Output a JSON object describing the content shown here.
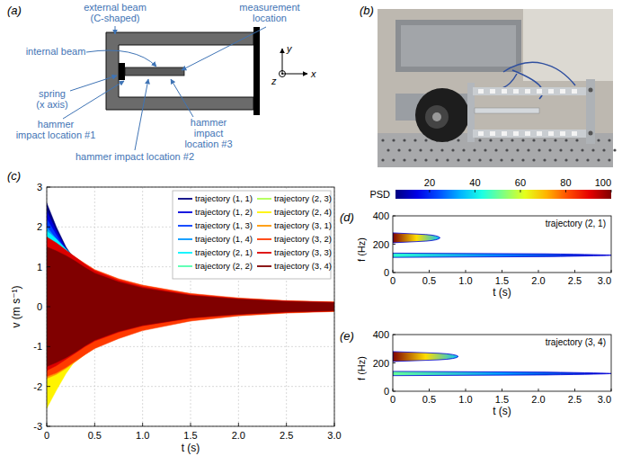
{
  "diagram": {
    "label": "(a)",
    "labels": [
      {
        "lines": [
          "external beam",
          "(C-shaped)"
        ]
      },
      {
        "lines": [
          "internal beam"
        ]
      },
      {
        "lines": [
          "measurement",
          "location"
        ]
      },
      {
        "lines": [
          "spring",
          "(x axis)"
        ]
      },
      {
        "lines": [
          "hammer",
          "impact location #1"
        ]
      },
      {
        "lines": [
          "hammer impact location #2"
        ]
      },
      {
        "lines": [
          "hammer",
          "impact",
          "location #3"
        ]
      }
    ],
    "axes": [
      "x",
      "y",
      "z"
    ]
  },
  "photo": {
    "label": "(b)"
  },
  "chart_data": [
    {
      "type": "band",
      "label": "(c)",
      "xlabel": "t (s)",
      "ylabel": "v (m s⁻¹)",
      "x": [
        0,
        0.1,
        0.2,
        0.3,
        0.4,
        0.5,
        0.75,
        1.0,
        1.5,
        2.0,
        2.5,
        3.0
      ],
      "xlim": [
        0,
        3
      ],
      "xticks": [
        0,
        0.5,
        {
          "value": 1,
          "label": "1.0"
        },
        1.5,
        {
          "value": 2,
          "label": "2.0"
        },
        2.5,
        {
          "value": 3,
          "label": "3.0"
        }
      ],
      "ylim": [
        -3,
        3
      ],
      "yticks": [
        -3,
        -2,
        -1,
        0,
        1,
        2,
        3
      ],
      "grid": true,
      "legend": "upper right",
      "series": [
        {
          "name": "trajectory (1, 1)",
          "color": "#000080",
          "values": [
            2.6,
            2.0,
            1.5,
            1.15,
            0.9,
            0.72,
            0.48,
            0.35,
            0.22,
            0.15,
            0.11,
            0.09
          ],
          "lower": [
            -2.0,
            -1.6,
            -1.25,
            -1.0,
            -0.8,
            -0.65,
            -0.45,
            -0.33,
            -0.21,
            -0.15,
            -0.11,
            -0.09
          ]
        },
        {
          "name": "trajectory (1, 2)",
          "color": "#0000dc",
          "values": [
            2.4,
            1.9,
            1.45,
            1.12,
            0.88,
            0.7,
            0.47,
            0.34,
            0.22,
            0.15,
            0.11,
            0.09
          ],
          "lower": [
            -1.9,
            -1.5,
            -1.2,
            -0.95,
            -0.78,
            -0.63,
            -0.44,
            -0.32,
            -0.21,
            -0.15,
            -0.11,
            -0.09
          ]
        },
        {
          "name": "trajectory (1, 3)",
          "color": "#003aff",
          "values": [
            2.2,
            1.8,
            1.4,
            1.1,
            0.87,
            0.7,
            0.47,
            0.35,
            0.22,
            0.15,
            0.11,
            0.09
          ],
          "lower": [
            -1.8,
            -1.45,
            -1.15,
            -0.93,
            -0.76,
            -0.62,
            -0.44,
            -0.32,
            -0.21,
            -0.15,
            -0.11,
            -0.09
          ]
        },
        {
          "name": "trajectory (1, 4)",
          "color": "#0097ff",
          "values": [
            2.0,
            1.7,
            1.35,
            1.08,
            0.86,
            0.7,
            0.48,
            0.36,
            0.23,
            0.16,
            0.12,
            0.1
          ],
          "lower": [
            -1.75,
            -1.45,
            -1.15,
            -0.93,
            -0.76,
            -0.63,
            -0.45,
            -0.33,
            -0.22,
            -0.16,
            -0.12,
            -0.1
          ]
        },
        {
          "name": "trajectory (2, 1)",
          "color": "#00f4ff",
          "values": [
            1.9,
            1.7,
            1.45,
            1.2,
            0.98,
            0.8,
            0.55,
            0.4,
            0.25,
            0.17,
            0.12,
            0.1
          ],
          "lower": [
            -2.2,
            -1.85,
            -1.5,
            -1.2,
            -0.98,
            -0.8,
            -0.55,
            -0.4,
            -0.25,
            -0.17,
            -0.12,
            -0.1
          ]
        },
        {
          "name": "trajectory (2, 2)",
          "color": "#51ffae",
          "values": [
            1.6,
            1.45,
            1.28,
            1.12,
            0.97,
            0.85,
            0.65,
            0.5,
            0.3,
            0.2,
            0.14,
            0.11
          ],
          "lower": [
            -2.3,
            -1.95,
            -1.6,
            -1.3,
            -1.08,
            -0.9,
            -0.68,
            -0.52,
            -0.31,
            -0.2,
            -0.14,
            -0.11
          ]
        },
        {
          "name": "trajectory (2, 3)",
          "color": "#aeff51",
          "values": [
            1.5,
            1.38,
            1.22,
            1.07,
            0.92,
            0.8,
            0.6,
            0.46,
            0.28,
            0.19,
            0.13,
            0.1
          ],
          "lower": [
            -2.4,
            -2.0,
            -1.62,
            -1.3,
            -1.06,
            -0.88,
            -0.64,
            -0.48,
            -0.29,
            -0.19,
            -0.13,
            -0.1
          ]
        },
        {
          "name": "trajectory (2, 4)",
          "color": "#fff400",
          "values": [
            1.5,
            1.36,
            1.2,
            1.04,
            0.9,
            0.78,
            0.58,
            0.44,
            0.27,
            0.18,
            0.13,
            0.1
          ],
          "lower": [
            -2.55,
            -2.1,
            -1.68,
            -1.34,
            -1.08,
            -0.88,
            -0.62,
            -0.46,
            -0.28,
            -0.18,
            -0.13,
            -0.1
          ]
        },
        {
          "name": "trajectory (3, 1)",
          "color": "#ff9700",
          "values": [
            1.5,
            1.42,
            1.3,
            1.15,
            1.0,
            0.87,
            0.65,
            0.5,
            0.3,
            0.2,
            0.14,
            0.11
          ],
          "lower": [
            -1.8,
            -1.7,
            -1.55,
            -1.38,
            -1.2,
            -1.04,
            -0.76,
            -0.56,
            -0.33,
            -0.21,
            -0.15,
            -0.11
          ]
        },
        {
          "name": "trajectory (3, 2)",
          "color": "#ff3a00",
          "values": [
            1.6,
            1.52,
            1.4,
            1.24,
            1.08,
            0.93,
            0.7,
            0.54,
            0.33,
            0.22,
            0.15,
            0.12
          ],
          "lower": [
            -1.75,
            -1.66,
            -1.52,
            -1.36,
            -1.2,
            -1.05,
            -0.8,
            -0.6,
            -0.36,
            -0.23,
            -0.16,
            -0.12
          ]
        },
        {
          "name": "trajectory (3, 3)",
          "color": "#dc0000",
          "values": [
            1.75,
            1.6,
            1.42,
            1.24,
            1.06,
            0.9,
            0.66,
            0.5,
            0.3,
            0.2,
            0.14,
            0.11
          ],
          "lower": [
            -1.6,
            -1.48,
            -1.32,
            -1.16,
            -1.0,
            -0.86,
            -0.64,
            -0.48,
            -0.29,
            -0.19,
            -0.14,
            -0.11
          ]
        },
        {
          "name": "trajectory (3, 4)",
          "color": "#800000",
          "values": [
            1.5,
            1.4,
            1.28,
            1.14,
            0.98,
            0.84,
            0.62,
            0.47,
            0.28,
            0.19,
            0.13,
            0.1
          ],
          "lower": [
            -1.5,
            -1.4,
            -1.28,
            -1.14,
            -0.98,
            -0.84,
            -0.62,
            -0.47,
            -0.28,
            -0.19,
            -0.13,
            -0.1
          ]
        }
      ]
    },
    {
      "type": "spectrogram",
      "label": "(d)",
      "annotation": "trajectory (2, 1)",
      "xlabel": "t (s)",
      "ylabel": "f (Hz)",
      "xlim": [
        0,
        3
      ],
      "xticks": [
        0,
        0.5,
        {
          "value": 1,
          "label": "1.0"
        },
        1.5,
        {
          "value": 2,
          "label": "2.0"
        },
        2.5,
        {
          "value": 3,
          "label": "3.0"
        }
      ],
      "ylim": [
        0,
        400
      ],
      "yticks": [
        0,
        200,
        400
      ],
      "colorbar": {
        "title": "PSD",
        "lim": [
          5,
          100
        ],
        "ticks": [
          20,
          40,
          60,
          80,
          100
        ]
      },
      "ridges": [
        {
          "f": 245,
          "width": 70,
          "t_start": 0,
          "t_end": 0.65,
          "psd_start": 100,
          "psd_end": 35
        },
        {
          "f": 122,
          "width": 30,
          "t_start": 0,
          "t_end": 3.0,
          "psd_start": 45,
          "psd_end": 12
        }
      ]
    },
    {
      "type": "spectrogram",
      "label": "(e)",
      "annotation": "trajectory (3, 4)",
      "xlabel": "t (s)",
      "ylabel": "f (Hz)",
      "xlim": [
        0,
        3
      ],
      "xticks": [
        0,
        0.5,
        {
          "value": 1,
          "label": "1.0"
        },
        1.5,
        {
          "value": 2,
          "label": "2.0"
        },
        2.5,
        {
          "value": 3,
          "label": "3.0"
        }
      ],
      "ylim": [
        0,
        400
      ],
      "yticks": [
        0,
        200,
        400
      ],
      "ridges": [
        {
          "f": 245,
          "width": 70,
          "t_start": 0,
          "t_end": 0.9,
          "psd_start": 100,
          "psd_end": 35
        },
        {
          "f": 125,
          "width": 30,
          "t_start": 0,
          "t_end": 3.0,
          "psd_start": 50,
          "psd_end": 12
        }
      ]
    }
  ]
}
